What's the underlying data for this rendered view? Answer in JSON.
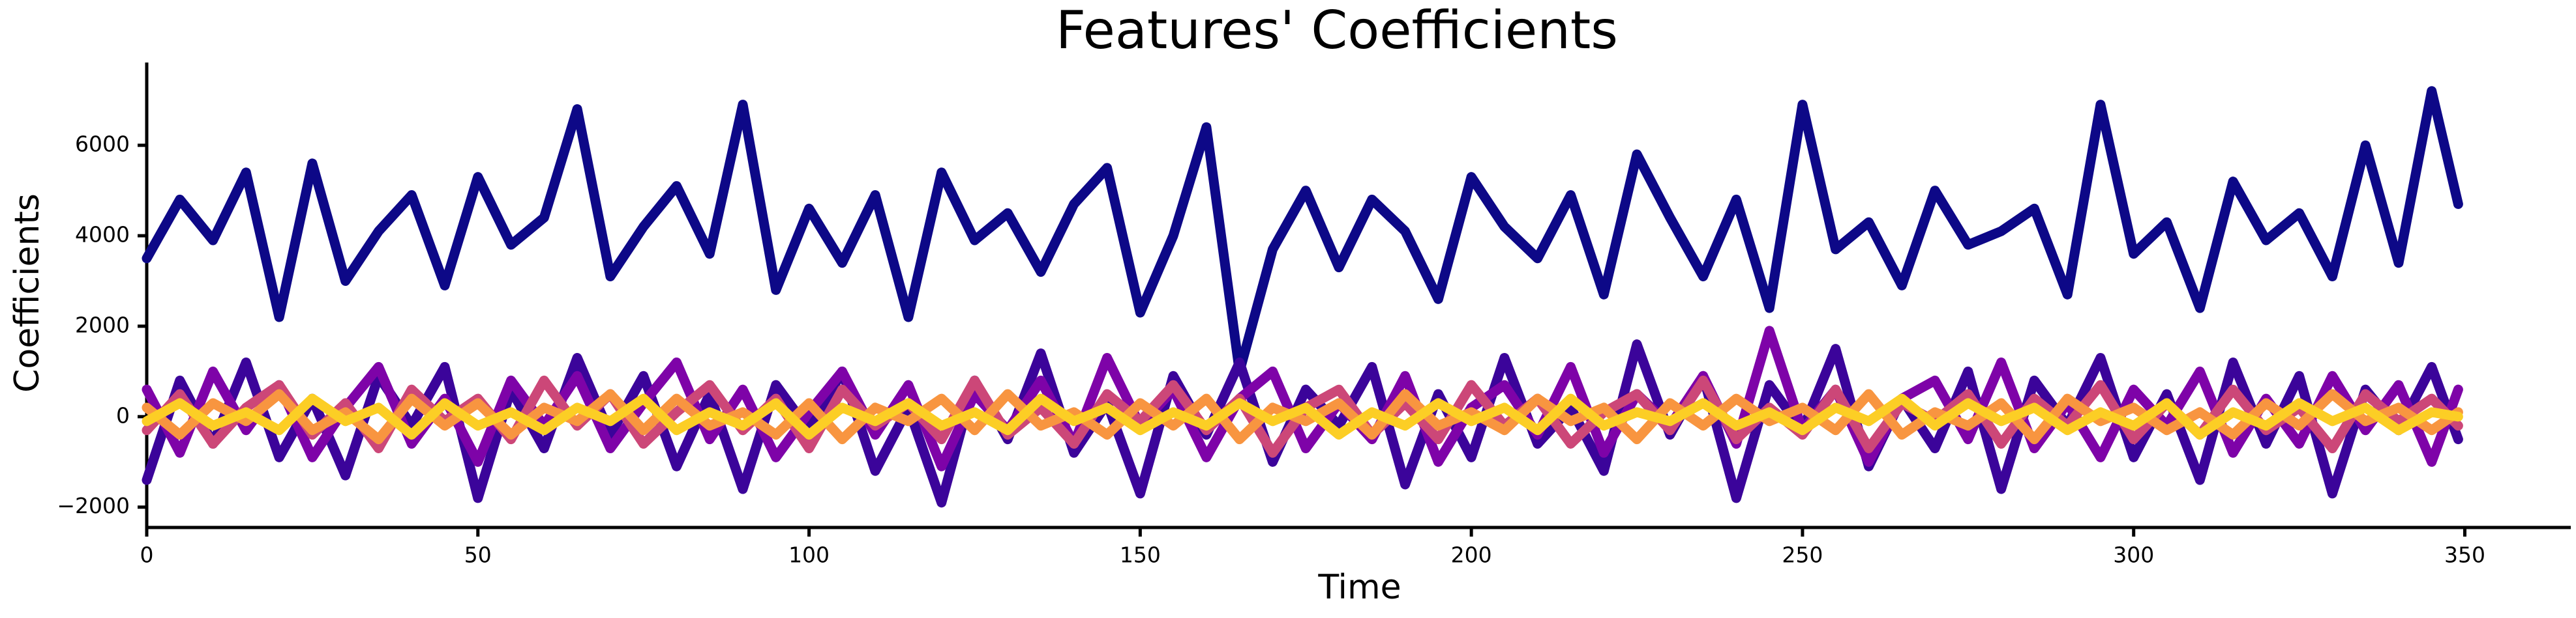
{
  "chart_data": {
    "type": "line",
    "title": "Features' Coefficients",
    "xlabel": "Time",
    "ylabel": "Coefficients",
    "xlim": [
      0,
      366
    ],
    "ylim": [
      -2450,
      7830
    ],
    "xticks": [
      0,
      50,
      100,
      150,
      200,
      250,
      300,
      350
    ],
    "yticks": [
      {
        "value": -2000,
        "label": "−2000"
      },
      0,
      2000,
      4000,
      6000
    ],
    "x": [
      0,
      5,
      10,
      15,
      20,
      25,
      30,
      35,
      40,
      45,
      50,
      55,
      60,
      65,
      70,
      75,
      80,
      85,
      90,
      95,
      100,
      105,
      110,
      115,
      120,
      125,
      130,
      135,
      140,
      145,
      150,
      155,
      160,
      165,
      170,
      175,
      180,
      185,
      190,
      195,
      200,
      205,
      210,
      215,
      220,
      225,
      230,
      235,
      240,
      245,
      250,
      255,
      260,
      265,
      270,
      275,
      280,
      285,
      290,
      295,
      300,
      305,
      310,
      315,
      320,
      325,
      330,
      335,
      340,
      345,
      349
    ],
    "series": [
      {
        "color": "#0d0887",
        "values": [
          3500,
          4800,
          3900,
          5400,
          2200,
          5600,
          3000,
          4100,
          4900,
          2900,
          5300,
          3800,
          4400,
          6800,
          3100,
          4200,
          5100,
          3600,
          6900,
          2800,
          4600,
          3400,
          4900,
          2200,
          5400,
          3900,
          4500,
          3200,
          4700,
          5500,
          2300,
          4000,
          6400,
          1000,
          3700,
          5000,
          3300,
          4800,
          4100,
          2600,
          5300,
          4200,
          3500,
          4900,
          2700,
          5800,
          4400,
          3100,
          4800,
          2400,
          6900,
          3700,
          4300,
          2900,
          5000,
          3800,
          4100,
          4600,
          2700,
          6900,
          3600,
          4300,
          2400,
          5200,
          3900,
          4500,
          3100,
          6000,
          3400,
          7200,
          4700
        ]
      },
      {
        "color": "#3b049a",
        "values": [
          -1400,
          800,
          -600,
          1200,
          -900,
          400,
          -1300,
          900,
          -200,
          1100,
          -1800,
          600,
          -700,
          1300,
          -400,
          900,
          -1100,
          500,
          -1600,
          700,
          -300,
          1000,
          -1200,
          200,
          -1900,
          800,
          -500,
          1400,
          -800,
          300,
          -1700,
          900,
          -400,
          1200,
          -1000,
          600,
          -200,
          1100,
          -1500,
          500,
          -900,
          1300,
          -600,
          200,
          -1200,
          1600,
          -400,
          900,
          -1800,
          700,
          -300,
          1500,
          -1100,
          400,
          -700,
          1000,
          -1600,
          800,
          -200,
          1300,
          -900,
          500,
          -1400,
          1200,
          -600,
          900,
          -1700,
          600,
          -300,
          1100,
          -500
        ]
      },
      {
        "color": "#7e03a8",
        "values": [
          600,
          -800,
          1000,
          -300,
          700,
          -900,
          200,
          1100,
          -600,
          400,
          -1000,
          800,
          -200,
          900,
          -700,
          300,
          1200,
          -500,
          600,
          -900,
          100,
          1000,
          -400,
          700,
          -1100,
          500,
          -300,
          800,
          -600,
          1300,
          -200,
          600,
          -900,
          400,
          1000,
          -700,
          300,
          -500,
          900,
          -1000,
          200,
          700,
          -400,
          1100,
          -800,
          500,
          -200,
          900,
          -600,
          1900,
          -300,
          600,
          -1000,
          400,
          800,
          -500,
          1200,
          -700,
          300,
          -900,
          600,
          -200,
          1000,
          -800,
          400,
          -600,
          900,
          -300,
          700,
          -1000,
          600
        ]
      },
      {
        "color": "#cc4778",
        "values": [
          -300,
          500,
          -600,
          200,
          700,
          -400,
          300,
          -700,
          600,
          -100,
          400,
          -500,
          800,
          -200,
          500,
          -600,
          100,
          700,
          -300,
          400,
          -700,
          600,
          -200,
          300,
          -500,
          800,
          -400,
          200,
          -600,
          500,
          -100,
          700,
          -300,
          400,
          -800,
          200,
          600,
          -400,
          300,
          -500,
          700,
          -200,
          400,
          -600,
          100,
          500,
          -300,
          800,
          -500,
          200,
          -400,
          600,
          -700,
          300,
          -100,
          500,
          -600,
          400,
          -200,
          700,
          -500,
          300,
          -400,
          600,
          -300,
          200,
          -700,
          500,
          -100,
          400,
          -200
        ]
      },
      {
        "color": "#f89540",
        "values": [
          200,
          -400,
          300,
          -100,
          500,
          -300,
          100,
          -500,
          400,
          -200,
          300,
          -400,
          200,
          -100,
          500,
          -300,
          400,
          -200,
          100,
          -400,
          300,
          -500,
          200,
          -100,
          400,
          -300,
          500,
          -200,
          100,
          -400,
          300,
          -200,
          400,
          -500,
          200,
          -100,
          300,
          -400,
          500,
          -200,
          100,
          -300,
          400,
          -100,
          200,
          -500,
          300,
          -200,
          400,
          -100,
          200,
          -300,
          500,
          -400,
          100,
          -200,
          300,
          -500,
          400,
          -100,
          200,
          -300,
          100,
          -400,
          300,
          -200,
          500,
          -100,
          200,
          -300,
          100
        ]
      },
      {
        "color": "#fcce25",
        "values": [
          -100,
          300,
          -200,
          100,
          -300,
          400,
          -100,
          200,
          -400,
          300,
          -200,
          100,
          -300,
          200,
          -100,
          400,
          -300,
          100,
          -200,
          300,
          -400,
          200,
          -100,
          300,
          -200,
          100,
          -300,
          400,
          -100,
          200,
          -300,
          100,
          -200,
          300,
          -100,
          200,
          -400,
          100,
          -200,
          300,
          -100,
          200,
          -300,
          400,
          -200,
          100,
          -100,
          300,
          -200,
          100,
          -300,
          200,
          -100,
          400,
          -200,
          300,
          -100,
          200,
          -300,
          100,
          -200,
          300,
          -400,
          100,
          -200,
          300,
          -100,
          200,
          -300,
          100,
          0
        ]
      }
    ]
  }
}
